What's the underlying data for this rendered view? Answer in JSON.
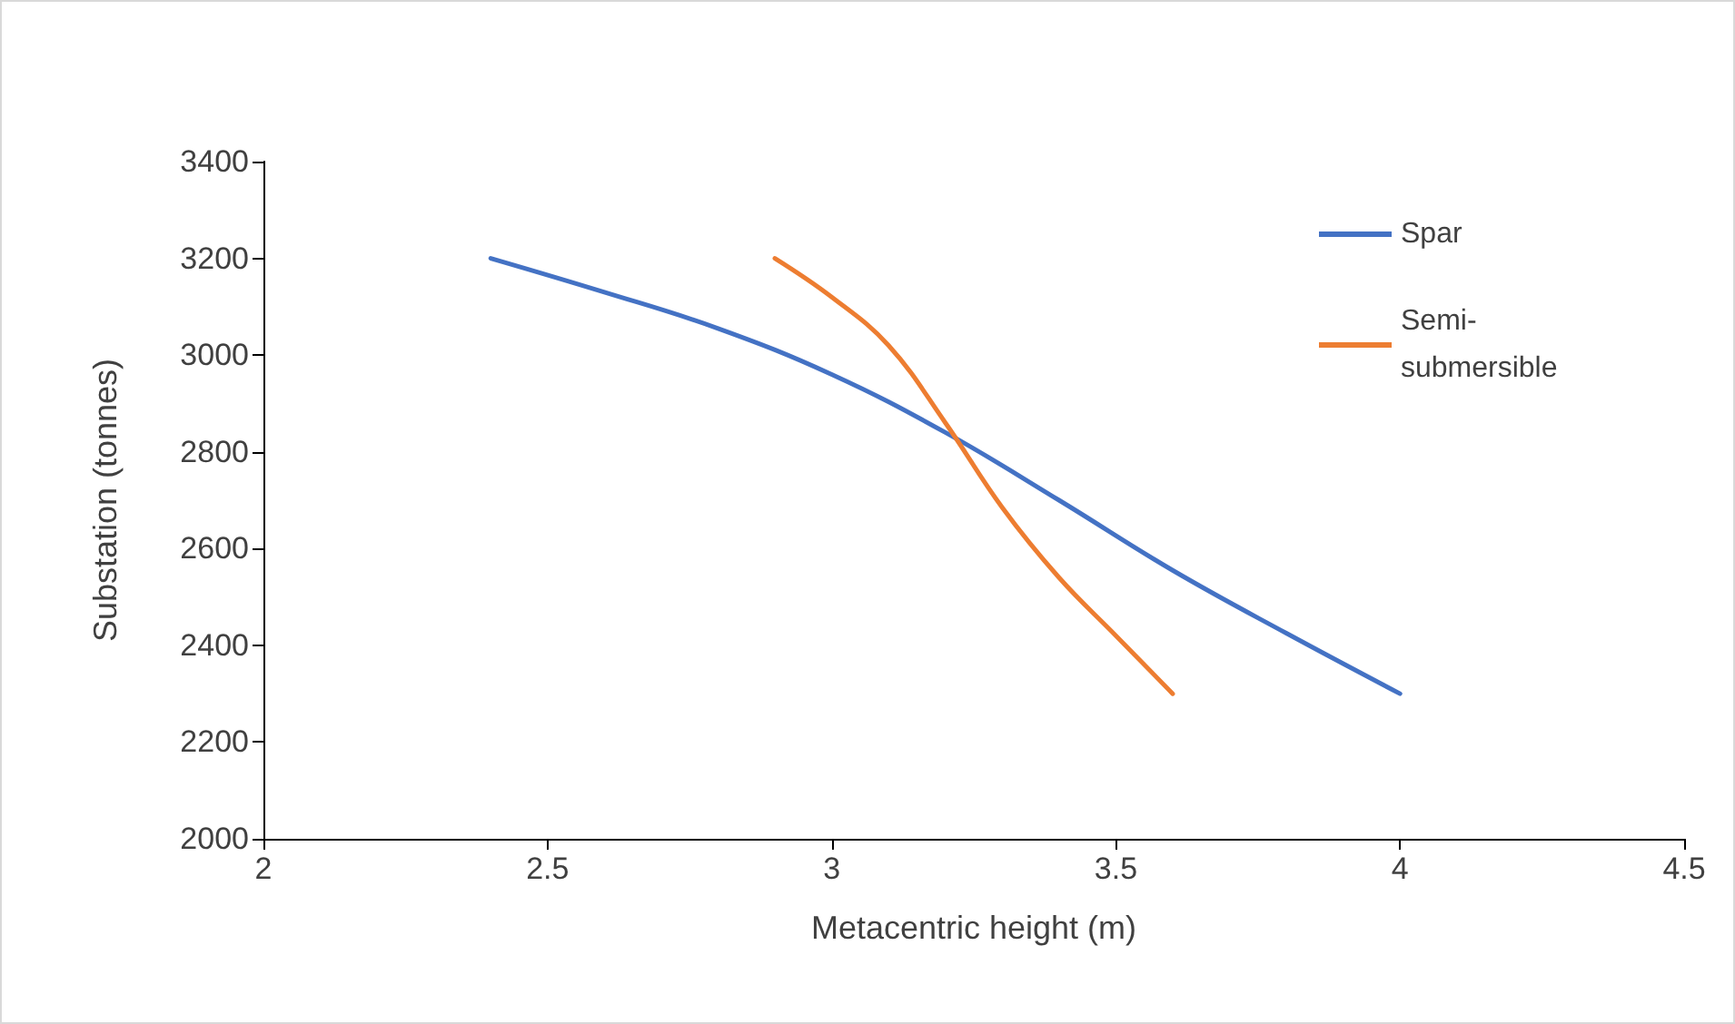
{
  "chart_data": {
    "type": "line",
    "xlabel": "Metacentric height (m)",
    "ylabel": "Substation (tonnes)",
    "xlim": [
      2,
      4.5
    ],
    "xticks": [
      2,
      2.5,
      3,
      3.5,
      4,
      4.5
    ],
    "ylim": [
      2000,
      3400
    ],
    "yticks": [
      2000,
      2200,
      2400,
      2600,
      2800,
      3000,
      3200,
      3400
    ],
    "grid": false,
    "legend": "top right",
    "marker": "none",
    "line_style": "solid",
    "series": [
      {
        "name": "Spar",
        "color": "#4472c4",
        "x": [
          2.4,
          2.6,
          2.8,
          3.0,
          3.2,
          3.4,
          3.6,
          3.8,
          4.0
        ],
        "values": [
          3200,
          3130,
          3055,
          2960,
          2840,
          2700,
          2555,
          2425,
          2300
        ]
      },
      {
        "name": "Semi-submersible",
        "color": "#ed7d31",
        "x": [
          2.9,
          3.0,
          3.1,
          3.2,
          3.3,
          3.4,
          3.5,
          3.6
        ],
        "values": [
          3200,
          3120,
          3020,
          2860,
          2685,
          2540,
          2420,
          2300
        ]
      }
    ]
  }
}
